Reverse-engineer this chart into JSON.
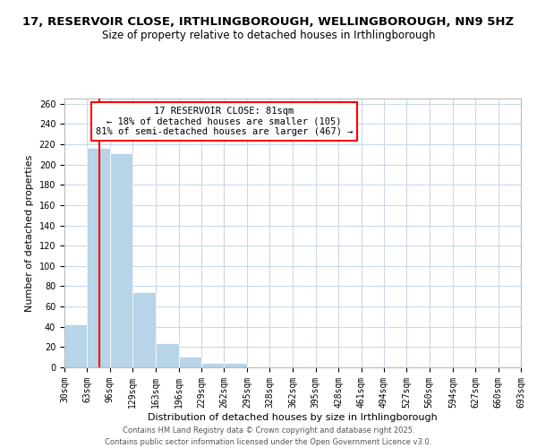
{
  "title": "17, RESERVOIR CLOSE, IRTHLINGBOROUGH, WELLINGBOROUGH, NN9 5HZ",
  "subtitle": "Size of property relative to detached houses in Irthlingborough",
  "xlabel": "Distribution of detached houses by size in Irthlingborough",
  "ylabel": "Number of detached properties",
  "bar_color": "#b8d4e8",
  "vline_x": 81,
  "vline_color": "red",
  "annotation_lines": [
    "17 RESERVOIR CLOSE: 81sqm",
    "← 18% of detached houses are smaller (105)",
    "81% of semi-detached houses are larger (467) →"
  ],
  "bin_edges": [
    30,
    63,
    96,
    129,
    163,
    196,
    229,
    262,
    295,
    328,
    362,
    395,
    428,
    461,
    494,
    527,
    560,
    594,
    627,
    660,
    693
  ],
  "bin_counts": [
    42,
    216,
    211,
    74,
    24,
    11,
    4,
    4,
    0,
    0,
    0,
    0,
    0,
    0,
    0,
    0,
    0,
    0,
    0,
    1
  ],
  "xlim": [
    30,
    693
  ],
  "ylim": [
    0,
    265
  ],
  "yticks": [
    0,
    20,
    40,
    60,
    80,
    100,
    120,
    140,
    160,
    180,
    200,
    220,
    240,
    260
  ],
  "background_color": "#ffffff",
  "grid_color": "#c8d8ea",
  "footer_text": "Contains HM Land Registry data © Crown copyright and database right 2025.\nContains public sector information licensed under the Open Government Licence v3.0.",
  "title_fontsize": 9.5,
  "subtitle_fontsize": 8.5,
  "axis_label_fontsize": 8,
  "tick_fontsize": 7,
  "annotation_fontsize": 7.5,
  "footer_fontsize": 6
}
